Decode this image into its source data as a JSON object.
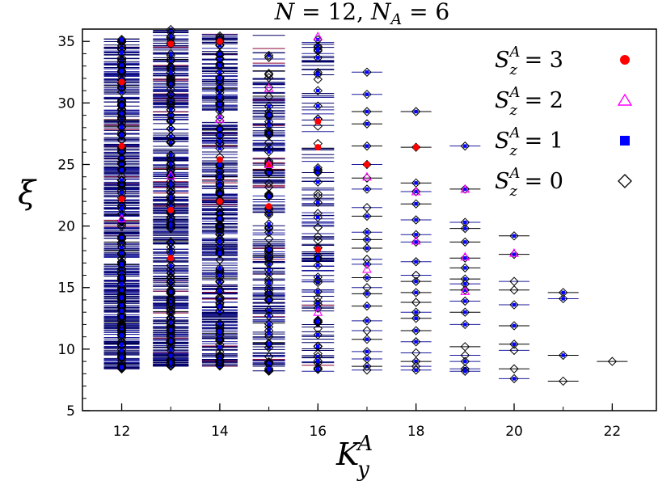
{
  "chart_data": {
    "type": "scatter",
    "title": {
      "N": "N",
      "eq1": " = 12, ",
      "NA": "N",
      "NA_sub": "A",
      "eq2": " = 6"
    },
    "xlabel": {
      "base": "K",
      "sup": "A",
      "sub": "y"
    },
    "ylabel": "ξ",
    "xlim": [
      11.2,
      22.9
    ],
    "ylim": [
      5,
      36
    ],
    "xticks": [
      12,
      14,
      16,
      18,
      20,
      22
    ],
    "yticks": [
      5,
      10,
      15,
      20,
      25,
      30,
      35
    ],
    "legend_position": "top-right",
    "series": [
      {
        "name_base": "S",
        "name_sup": "A",
        "name_sub": "z",
        "name_value": " = 3",
        "marker": "circle",
        "color": "#ff0000",
        "points": [
          [
            12,
            22.2
          ],
          [
            12,
            26.5
          ],
          [
            12,
            31.7
          ],
          [
            13,
            17.4
          ],
          [
            13,
            21.3
          ],
          [
            13,
            34.8
          ],
          [
            14,
            22.0
          ],
          [
            14,
            25.4
          ],
          [
            14,
            35.0
          ],
          [
            15,
            21.6
          ],
          [
            15,
            25.0
          ],
          [
            16,
            18.1
          ],
          [
            16,
            26.4
          ],
          [
            16,
            28.5
          ],
          [
            17,
            25.0
          ],
          [
            18,
            26.4
          ]
        ]
      },
      {
        "name_base": "S",
        "name_sup": "A",
        "name_sub": "z",
        "name_value": " = 2",
        "marker": "triangle",
        "color": "#ff00ff",
        "points": [
          [
            12,
            20.6
          ],
          [
            13,
            24.1
          ],
          [
            14,
            28.7
          ],
          [
            15,
            25.0
          ],
          [
            15,
            31.2
          ],
          [
            16,
            13.0
          ],
          [
            16,
            35.4
          ],
          [
            17,
            16.5
          ],
          [
            17,
            24.0
          ],
          [
            18,
            18.8
          ],
          [
            18,
            22.8
          ],
          [
            19,
            17.5
          ],
          [
            19,
            23.0
          ],
          [
            19,
            14.7
          ],
          [
            20,
            17.8
          ]
        ]
      },
      {
        "name_base": "S",
        "name_sup": "A",
        "name_sub": "z",
        "name_value": " = 1",
        "marker": "square",
        "color": "#0000ff",
        "points": []
      },
      {
        "name_base": "S",
        "name_sup": "A",
        "name_sub": "z",
        "name_value": " = 0",
        "marker": "diamond",
        "color": "#000000",
        "points": [
          [
            17,
            32.5
          ],
          [
            17,
            30.7
          ],
          [
            17,
            29.3
          ],
          [
            17,
            28.3
          ],
          [
            17,
            26.5
          ],
          [
            17,
            25.0
          ],
          [
            17,
            23.9
          ],
          [
            17,
            23.0
          ],
          [
            17,
            21.5
          ],
          [
            17,
            20.8
          ],
          [
            17,
            19.5
          ],
          [
            17,
            18.9
          ],
          [
            17,
            18.2
          ],
          [
            17,
            17.3
          ],
          [
            17,
            16.9
          ],
          [
            17,
            15.8
          ],
          [
            17,
            15.0
          ],
          [
            17,
            14.5
          ],
          [
            17,
            13.5
          ],
          [
            17,
            12.3
          ],
          [
            17,
            11.5
          ],
          [
            17,
            10.8
          ],
          [
            17,
            9.8
          ],
          [
            17,
            9.2
          ],
          [
            17,
            8.6
          ],
          [
            17,
            8.3
          ],
          [
            18,
            29.3
          ],
          [
            18,
            26.4
          ],
          [
            18,
            23.5
          ],
          [
            18,
            22.8
          ],
          [
            18,
            21.8
          ],
          [
            18,
            20.5
          ],
          [
            18,
            19.3
          ],
          [
            18,
            18.7
          ],
          [
            18,
            17.1
          ],
          [
            18,
            16.0
          ],
          [
            18,
            15.5
          ],
          [
            18,
            14.6
          ],
          [
            18,
            13.8
          ],
          [
            18,
            13.0
          ],
          [
            18,
            12.5
          ],
          [
            18,
            11.5
          ],
          [
            18,
            10.6
          ],
          [
            18,
            9.7
          ],
          [
            18,
            9.0
          ],
          [
            18,
            8.6
          ],
          [
            18,
            8.3
          ],
          [
            19,
            26.5
          ],
          [
            19,
            23.0
          ],
          [
            19,
            20.3
          ],
          [
            19,
            19.8
          ],
          [
            19,
            18.7
          ],
          [
            19,
            17.4
          ],
          [
            19,
            16.6
          ],
          [
            19,
            15.7
          ],
          [
            19,
            15.3
          ],
          [
            19,
            14.8
          ],
          [
            19,
            13.9
          ],
          [
            19,
            13.0
          ],
          [
            19,
            12.0
          ],
          [
            19,
            10.2
          ],
          [
            19,
            9.5
          ],
          [
            19,
            9.0
          ],
          [
            19,
            8.4
          ],
          [
            19,
            8.2
          ],
          [
            20,
            19.2
          ],
          [
            20,
            17.7
          ],
          [
            20,
            15.5
          ],
          [
            20,
            14.8
          ],
          [
            20,
            13.6
          ],
          [
            20,
            11.9
          ],
          [
            20,
            10.4
          ],
          [
            20,
            9.9
          ],
          [
            20,
            8.4
          ],
          [
            20,
            7.6
          ],
          [
            21,
            14.6
          ],
          [
            21,
            14.1
          ],
          [
            21,
            9.5
          ],
          [
            21,
            7.4
          ],
          [
            22,
            9.0
          ]
        ]
      }
    ]
  }
}
